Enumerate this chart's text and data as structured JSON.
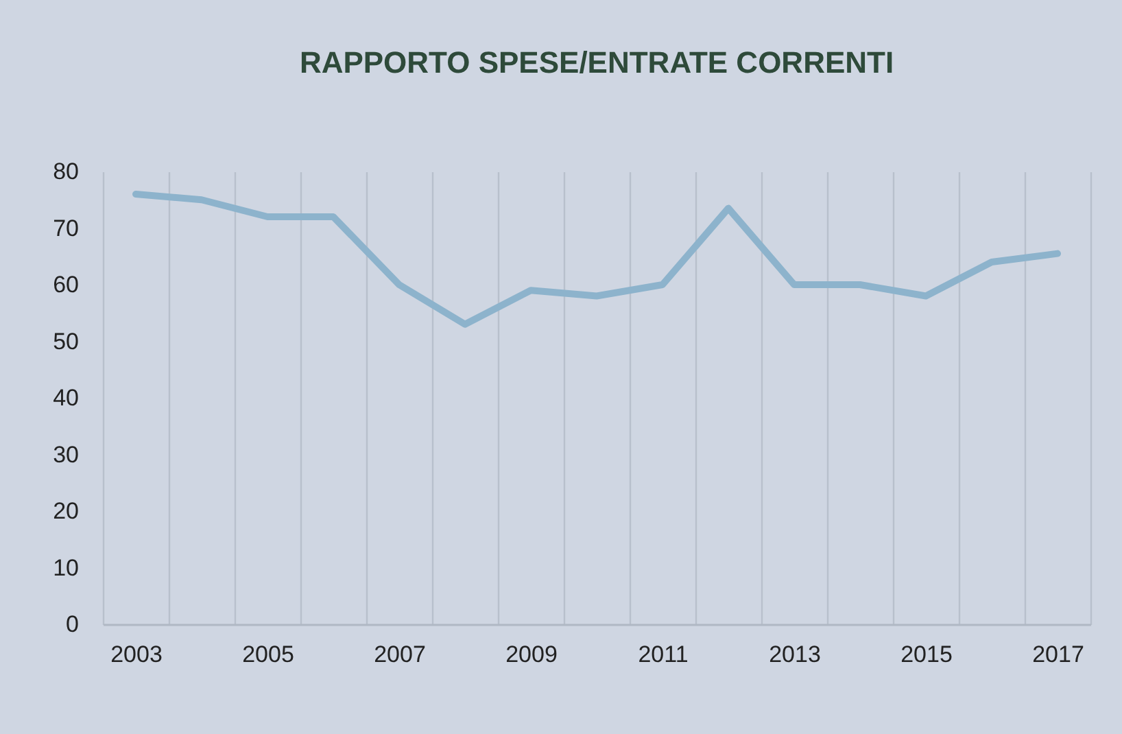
{
  "chart_data": {
    "type": "line",
    "title": "RAPPORTO SPESE/ENTRATE CORRENTI",
    "categories": [
      "2003",
      null,
      "2005",
      null,
      "2007",
      null,
      "2009",
      null,
      "2011",
      null,
      "2013",
      null,
      "2015",
      null,
      "2017"
    ],
    "series": [
      {
        "color": "#8db3cc",
        "values": [
          76,
          75,
          72,
          72,
          60,
          53,
          59,
          58,
          60,
          73.5,
          60,
          60,
          58,
          64,
          65.5
        ]
      }
    ],
    "ylim": [
      0,
      80
    ],
    "yticks": [
      0,
      10,
      20,
      30,
      40,
      50,
      60,
      70,
      80
    ],
    "grid": "x"
  }
}
